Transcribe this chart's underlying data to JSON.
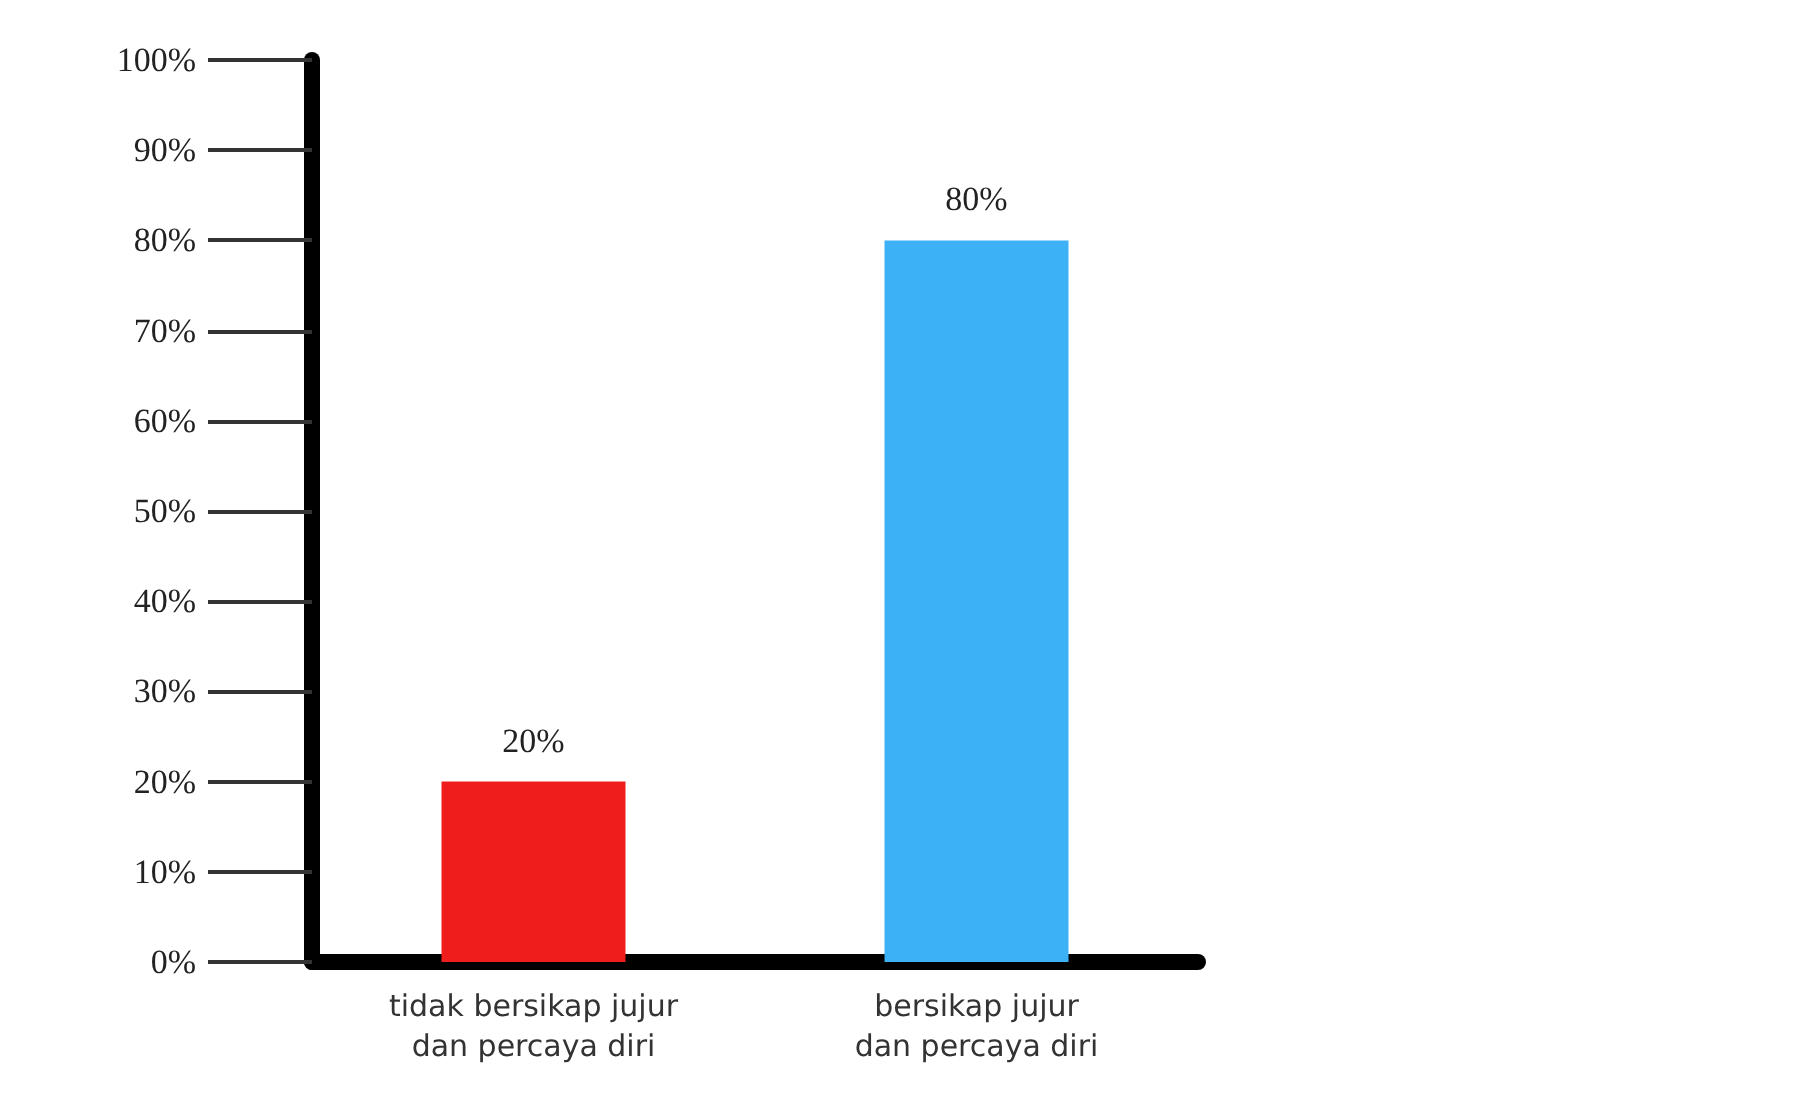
{
  "chart_data": {
    "type": "bar",
    "categories": [
      "tidak bersikap jujur\ndan percaya diri",
      "bersikap jujur\ndan percaya diri"
    ],
    "values": [
      20,
      80
    ],
    "colors": [
      "#f01d1d",
      "#3db1f5"
    ],
    "ylim": [
      0,
      100
    ],
    "yticks": [
      {
        "value": 0,
        "label": "0%"
      },
      {
        "value": 10,
        "label": "10%"
      },
      {
        "value": 20,
        "label": "20%"
      },
      {
        "value": 30,
        "label": "30%"
      },
      {
        "value": 40,
        "label": "40%"
      },
      {
        "value": 50,
        "label": "50%"
      },
      {
        "value": 60,
        "label": "60%"
      },
      {
        "value": 70,
        "label": "70%"
      },
      {
        "value": 80,
        "label": "80%"
      },
      {
        "value": 90,
        "label": "90%"
      },
      {
        "value": 100,
        "label": "100%"
      }
    ],
    "value_labels": [
      "20%",
      "80%"
    ],
    "grid": false
  }
}
